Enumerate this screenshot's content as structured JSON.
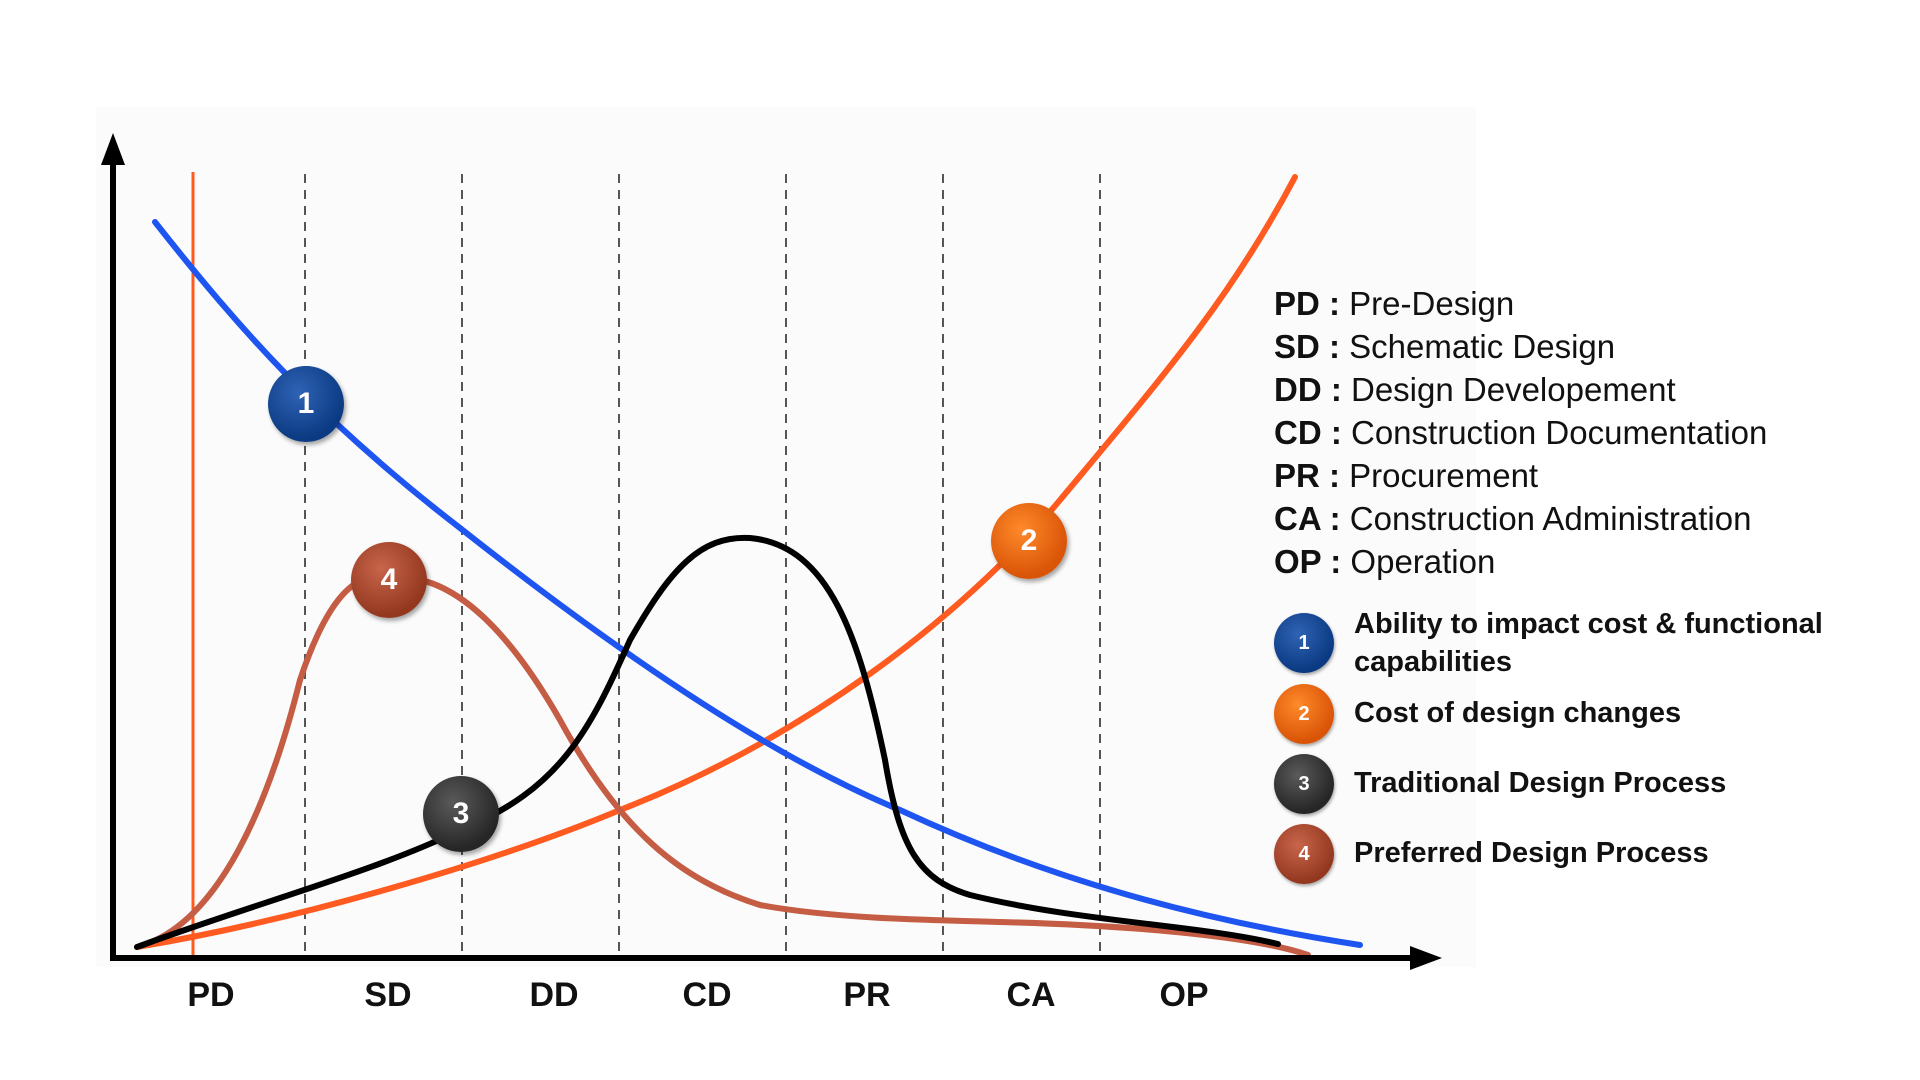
{
  "phases": [
    "PD",
    "SD",
    "DD",
    "CD",
    "PR",
    "CA",
    "OP"
  ],
  "abbreviations": [
    {
      "code": "PD",
      "sep": " : ",
      "name": "Pre-Design"
    },
    {
      "code": "SD",
      "sep": " : ",
      "name": "Schematic Design"
    },
    {
      "code": "DD",
      "sep": " : ",
      "name": "Design Developement"
    },
    {
      "code": "CD",
      "sep": " : ",
      "name": "Construction Documentation"
    },
    {
      "code": "PR",
      "sep": " : ",
      "name": "Procurement"
    },
    {
      "code": "CA",
      "sep": " : ",
      "name": "Construction Administration"
    },
    {
      "code": "OP",
      "sep": " : ",
      "name": "Operation"
    }
  ],
  "curves": [
    {
      "number": "1",
      "label": "Ability to impact cost & functional capabilities",
      "color": "#1e55f0",
      "badge_color": "#0b3a82"
    },
    {
      "number": "2",
      "label": "Cost of design changes",
      "color": "#ff5a1f",
      "badge_color": "#e8620f"
    },
    {
      "number": "3",
      "label": "Traditional Design Process",
      "color": "#000000",
      "badge_color": "#3a3a3a"
    },
    {
      "number": "4",
      "label": "Preferred Design Process",
      "color": "#c45d44",
      "badge_color": "#a8432c"
    }
  ],
  "colors": {
    "axis": "#000000",
    "divider": "#555555",
    "predesign_marker": "#ff5a1f"
  }
}
